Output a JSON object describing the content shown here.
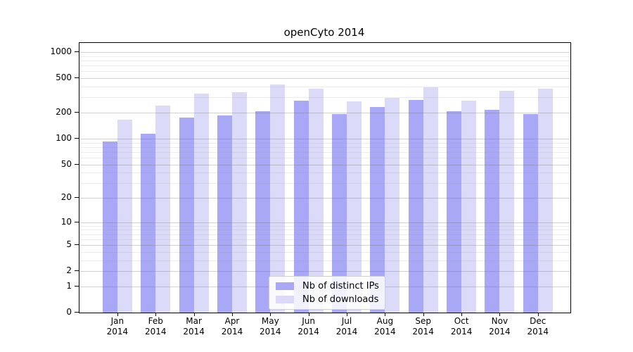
{
  "chart_data": {
    "type": "bar",
    "title": "openCyto 2014",
    "categories": [
      "Jan",
      "Feb",
      "Mar",
      "Apr",
      "May",
      "Jun",
      "Jul",
      "Aug",
      "Sep",
      "Oct",
      "Nov",
      "Dec"
    ],
    "x_tick_year": "2014",
    "series": [
      {
        "name": "Nb of distinct IPs",
        "color": "#a8a8f6",
        "values": [
          93,
          115,
          176,
          185,
          209,
          274,
          193,
          234,
          283,
          207,
          216,
          194
        ]
      },
      {
        "name": "Nb of downloads",
        "color": "#dbdbf9",
        "values": [
          166,
          241,
          334,
          345,
          423,
          378,
          272,
          298,
          396,
          273,
          360,
          378
        ]
      }
    ],
    "y_ticks": [
      0,
      1,
      2,
      5,
      10,
      20,
      50,
      100,
      200,
      500,
      1000
    ],
    "y_minor_ticks": [
      3,
      4,
      6,
      7,
      8,
      9,
      30,
      40,
      60,
      70,
      80,
      90,
      300,
      400,
      600,
      700,
      800,
      900
    ],
    "y_scale": "log1p",
    "ylim": [
      0,
      1290
    ],
    "grid": true,
    "legend_position": "inside-bottom-center"
  }
}
